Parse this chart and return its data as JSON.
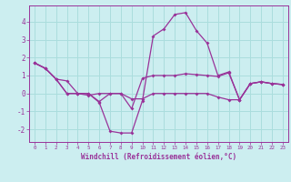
{
  "title": "",
  "xlabel": "Windchill (Refroidissement éolien,°C)",
  "background_color": "#cceef0",
  "grid_color": "#aadddd",
  "line_color": "#993399",
  "ylim": [
    -2.7,
    4.9
  ],
  "xlim": [
    -0.5,
    23.5
  ],
  "yticks": [
    -2,
    -1,
    0,
    1,
    2,
    3,
    4
  ],
  "xticks": [
    0,
    1,
    2,
    3,
    4,
    5,
    6,
    7,
    8,
    9,
    10,
    11,
    12,
    13,
    14,
    15,
    16,
    17,
    18,
    19,
    20,
    21,
    22,
    23
  ],
  "line1_x": [
    0,
    1,
    2,
    3,
    4,
    5,
    6,
    7,
    8,
    9,
    10,
    11,
    12,
    13,
    14,
    15,
    16,
    17,
    18,
    19,
    20,
    21,
    22,
    23
  ],
  "line1_y": [
    1.7,
    1.4,
    0.8,
    0.0,
    0.0,
    0.0,
    -0.5,
    -2.1,
    -2.2,
    -2.2,
    -0.4,
    3.2,
    3.6,
    4.4,
    4.5,
    3.5,
    2.8,
    1.0,
    1.2,
    -0.35,
    0.55,
    0.65,
    0.55,
    0.5
  ],
  "line2_x": [
    0,
    1,
    2,
    3,
    4,
    5,
    6,
    7,
    8,
    9,
    10,
    11,
    12,
    13,
    14,
    15,
    16,
    17,
    18,
    19,
    20,
    21,
    22,
    23
  ],
  "line2_y": [
    1.7,
    1.4,
    0.8,
    0.7,
    0.0,
    -0.1,
    0.0,
    0.0,
    0.0,
    -0.85,
    0.85,
    1.0,
    1.0,
    1.0,
    1.1,
    1.05,
    1.0,
    0.95,
    1.15,
    -0.35,
    0.55,
    0.65,
    0.55,
    0.5
  ],
  "line3_x": [
    0,
    1,
    2,
    3,
    4,
    5,
    6,
    7,
    8,
    9,
    10,
    11,
    12,
    13,
    14,
    15,
    16,
    17,
    18,
    19,
    20,
    21,
    22,
    23
  ],
  "line3_y": [
    1.7,
    1.4,
    0.8,
    0.0,
    0.0,
    0.0,
    -0.45,
    0.0,
    0.0,
    -0.3,
    -0.3,
    0.0,
    0.0,
    0.0,
    0.0,
    0.0,
    0.0,
    -0.2,
    -0.35,
    -0.35,
    0.55,
    0.65,
    0.55,
    0.5
  ],
  "marker": "D",
  "markersize": 2.0,
  "linewidth": 0.9
}
